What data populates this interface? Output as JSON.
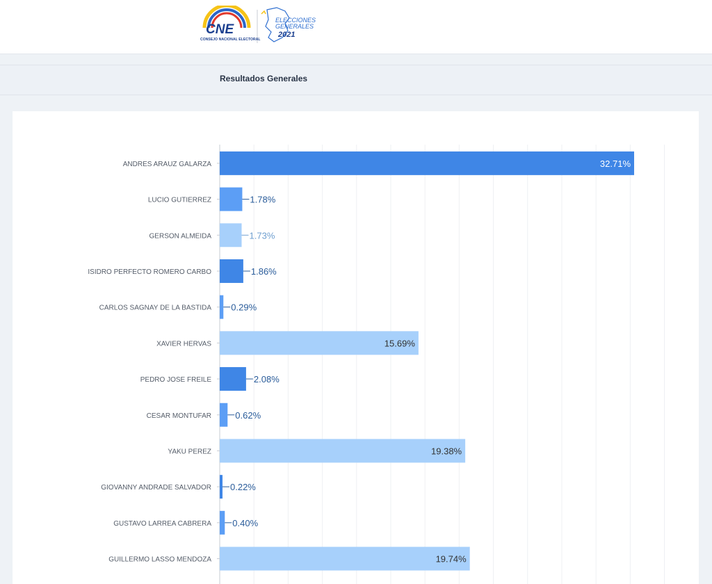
{
  "header": {
    "logo": {
      "org_abbr": "CNE",
      "org_name": "CONSEJO NACIONAL ELECTORAL",
      "event_line1": "ELECCIONES",
      "event_line2": "GENERALES",
      "event_year": "2021"
    }
  },
  "subheader": {
    "title": "Resultados Generales"
  },
  "colors": {
    "dark_bar": "#3f86e6",
    "medium_bar": "#5c9ef5",
    "light_bar": "#a7d0fb",
    "label_dark": "#2a5c9a",
    "label_light": "#6f9fd0",
    "inside_label_white": "#ffffff",
    "inside_label_dark": "#333333"
  },
  "chart_data": {
    "type": "bar",
    "orientation": "horizontal",
    "title": "Resultados Generales",
    "xlabel": "",
    "ylabel": "",
    "unit": "%",
    "xlim": [
      0,
      36
    ],
    "grid": true,
    "categories": [
      "ANDRES ARAUZ GALARZA",
      "LUCIO GUTIERREZ",
      "GERSON ALMEIDA",
      "ISIDRO PERFECTO ROMERO CARBO",
      "CARLOS SAGNAY DE LA BASTIDA",
      "XAVIER HERVAS",
      "PEDRO JOSE FREILE",
      "CESAR MONTUFAR",
      "YAKU PEREZ",
      "GIOVANNY ANDRADE SALVADOR",
      "GUSTAVO LARREA CABRERA",
      "GUILLERMO LASSO MENDOZA"
    ],
    "values": [
      32.71,
      1.78,
      1.73,
      1.86,
      0.29,
      15.69,
      2.08,
      0.62,
      19.38,
      0.22,
      0.4,
      19.74
    ],
    "labels": [
      "32.71%",
      "1.78%",
      "1.73%",
      "1.86%",
      "0.29%",
      "15.69%",
      "2.08%",
      "0.62%",
      "19.38%",
      "0.22%",
      "0.40%",
      "19.74%"
    ],
    "bar_colors": [
      "dark_bar",
      "medium_bar",
      "light_bar",
      "dark_bar",
      "medium_bar",
      "light_bar",
      "dark_bar",
      "medium_bar",
      "light_bar",
      "dark_bar",
      "medium_bar",
      "light_bar"
    ]
  }
}
